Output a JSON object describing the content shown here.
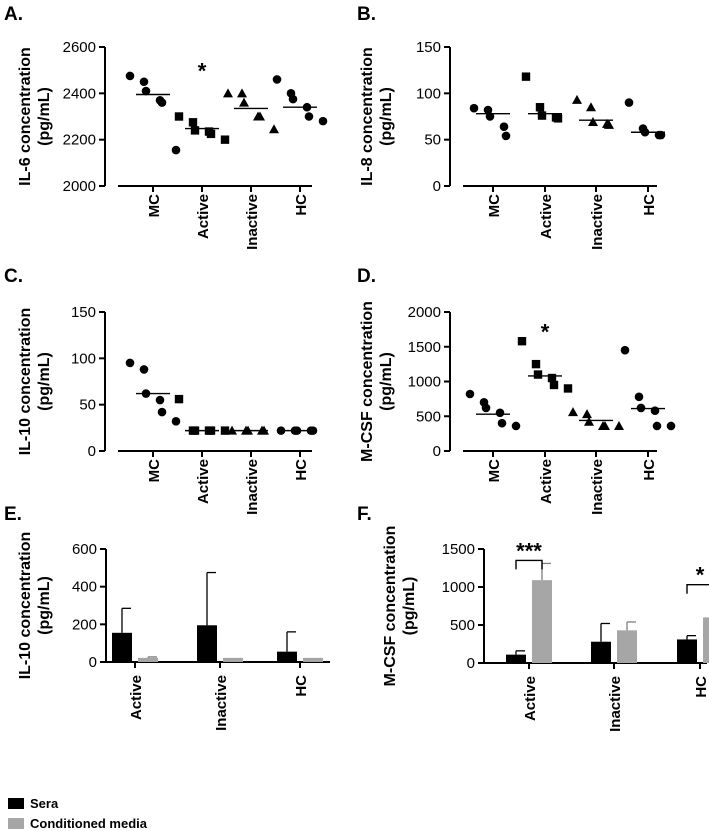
{
  "colors": {
    "sera": "#000000",
    "conditioned": "#a6a6a6",
    "axis": "#000000"
  },
  "chart_data": [
    {
      "panel": "A.",
      "type": "scatter",
      "ylabel": "IL-6 concentration",
      "yunit": "(pg/mL)",
      "categories": [
        "MC",
        "Active",
        "Inactive",
        "HC"
      ],
      "markers": [
        "circle",
        "square",
        "triangle",
        "circle"
      ],
      "ylim": [
        2000,
        2600
      ],
      "yticks": [
        2000,
        2200,
        2400,
        2600
      ],
      "points": [
        [
          2475,
          2450,
          2410,
          2370,
          2360,
          2155
        ],
        [
          2300,
          2275,
          2240,
          2235,
          2225,
          2200
        ],
        [
          2400,
          2400,
          2360,
          2300,
          2300,
          2245
        ],
        [
          2460,
          2400,
          2375,
          2340,
          2300,
          2280
        ]
      ],
      "medians": [
        2395,
        2248,
        2335,
        2340
      ],
      "annotations": [
        {
          "category": "Active",
          "text": "*",
          "y": 2515
        }
      ]
    },
    {
      "panel": "B.",
      "type": "scatter",
      "ylabel": "IL-8 concentration",
      "yunit": "(pg/mL)",
      "categories": [
        "MC",
        "Active",
        "Inactive",
        "HC"
      ],
      "markers": [
        "circle",
        "square",
        "triangle",
        "circle"
      ],
      "ylim": [
        0,
        150
      ],
      "yticks": [
        0,
        50,
        100,
        150
      ],
      "points": [
        [
          84,
          82,
          75,
          64,
          54
        ],
        [
          118,
          85,
          76,
          74,
          73
        ],
        [
          93,
          85,
          69,
          67,
          66
        ],
        [
          90,
          62,
          58,
          55,
          55
        ]
      ],
      "medians": [
        78,
        78,
        71,
        58
      ],
      "annotations": []
    },
    {
      "panel": "C.",
      "type": "scatter",
      "ylabel": "IL-10 concentration",
      "yunit": "(pg/mL)",
      "categories": [
        "MC",
        "Active",
        "Inactive",
        "HC"
      ],
      "markers": [
        "circle",
        "square",
        "triangle",
        "circle"
      ],
      "ylim": [
        0,
        150
      ],
      "yticks": [
        0,
        50,
        100,
        150
      ],
      "points": [
        [
          95,
          88,
          62,
          55,
          42,
          32
        ],
        [
          56,
          22,
          22,
          22,
          22,
          22
        ],
        [
          22,
          22,
          22,
          22,
          22
        ],
        [
          22,
          22,
          22,
          22,
          22
        ]
      ],
      "medians": [
        62,
        22,
        22,
        22
      ],
      "annotations": []
    },
    {
      "panel": "D.",
      "type": "scatter",
      "ylabel": "M-CSF concentration",
      "yunit": "(pg/mL)",
      "categories": [
        "MC",
        "Active",
        "Inactive",
        "HC"
      ],
      "markers": [
        "circle",
        "square",
        "triangle",
        "circle"
      ],
      "ylim": [
        0,
        2000
      ],
      "yticks": [
        0,
        500,
        1000,
        1500,
        2000
      ],
      "points": [
        [
          820,
          700,
          620,
          550,
          400,
          360
        ],
        [
          1580,
          1250,
          1100,
          1050,
          950,
          900
        ],
        [
          560,
          530,
          420,
          360,
          360,
          360
        ],
        [
          1450,
          780,
          620,
          580,
          360,
          360
        ]
      ],
      "medians": [
        530,
        1080,
        440,
        610
      ],
      "annotations": [
        {
          "category": "Active",
          "text": "*",
          "y": 1780
        }
      ]
    },
    {
      "panel": "E.",
      "type": "bar",
      "ylabel": "IL-10 concentration",
      "yunit": "(pg/mL)",
      "categories": [
        "Active",
        "Inactive",
        "HC"
      ],
      "ylim": [
        0,
        600
      ],
      "yticks": [
        0,
        200,
        400,
        600
      ],
      "series": [
        {
          "name": "Sera",
          "values": [
            155,
            195,
            55
          ],
          "errors": [
            130,
            280,
            105
          ]
        },
        {
          "name": "Conditioned media",
          "values": [
            22,
            22,
            22
          ],
          "errors": [
            5,
            0,
            0
          ]
        }
      ],
      "annotations": []
    },
    {
      "panel": "F.",
      "type": "bar",
      "ylabel": "M-CSF concentration",
      "yunit": "(pg/mL)",
      "categories": [
        "Active",
        "Inactive",
        "HC"
      ],
      "ylim": [
        0,
        1500
      ],
      "yticks": [
        0,
        500,
        1000,
        1500
      ],
      "series": [
        {
          "name": "Sera",
          "values": [
            110,
            280,
            310
          ],
          "errors": [
            50,
            240,
            50
          ]
        },
        {
          "name": "Conditioned media",
          "values": [
            1090,
            430,
            600
          ],
          "errors": [
            220,
            110,
            400
          ]
        }
      ],
      "annotations": [
        {
          "category": "Active",
          "text": "***",
          "y": 1350
        },
        {
          "category": "HC",
          "text": "*",
          "y": 1030
        }
      ]
    }
  ],
  "legend": [
    {
      "label": "Sera",
      "color": "#000000"
    },
    {
      "label": "Conditioned media",
      "color": "#a6a6a6"
    }
  ]
}
